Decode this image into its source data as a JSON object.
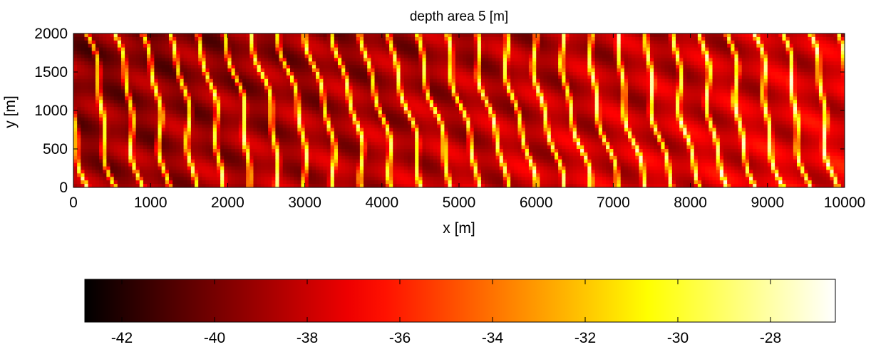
{
  "chart_data": {
    "type": "heatmap",
    "title": "depth area 5 [m]",
    "xlabel": "x [m]",
    "ylabel": "y [m]",
    "xlim": [
      0,
      10000
    ],
    "ylim": [
      0,
      2000
    ],
    "xticks": [
      {
        "value": 0,
        "label": "0"
      },
      {
        "value": 1000,
        "label": "1000"
      },
      {
        "value": 2000,
        "label": "2000"
      },
      {
        "value": 3000,
        "label": "3000"
      },
      {
        "value": 4000,
        "label": "4000"
      },
      {
        "value": 5000,
        "label": "5000"
      },
      {
        "value": 6000,
        "label": "6000"
      },
      {
        "value": 7000,
        "label": "7000"
      },
      {
        "value": 8000,
        "label": "8000"
      },
      {
        "value": 9000,
        "label": "9000"
      },
      {
        "value": 10000,
        "label": "10000"
      }
    ],
    "yticks": [
      {
        "value": 0,
        "label": "0"
      },
      {
        "value": 500,
        "label": "500"
      },
      {
        "value": 1000,
        "label": "1000"
      },
      {
        "value": 1500,
        "label": "1500"
      },
      {
        "value": 2000,
        "label": "2000"
      }
    ],
    "colormap": "hot",
    "colorbar": {
      "orientation": "horizontal",
      "range": [
        -42.8,
        -26.6
      ],
      "ticks": [
        {
          "value": -42,
          "label": "-42"
        },
        {
          "value": -40,
          "label": "-40"
        },
        {
          "value": -38,
          "label": "-38"
        },
        {
          "value": -36,
          "label": "-36"
        },
        {
          "value": -34,
          "label": "-34"
        },
        {
          "value": -32,
          "label": "-32"
        },
        {
          "value": -30,
          "label": "-30"
        },
        {
          "value": -28,
          "label": "-28"
        }
      ]
    },
    "pattern": "elongated bedform ridges (sand waves) oriented roughly north-south, crest-to-crest spacing about 300-400 m; crests near -28 m, troughs near -42 m, overall shallower toward larger x",
    "colors": {
      "black": "#000000",
      "dark_red": "#6a0000",
      "red": "#ff0000",
      "orange": "#ff8c00",
      "yellow": "#ffff00",
      "white": "#ffffff"
    }
  }
}
